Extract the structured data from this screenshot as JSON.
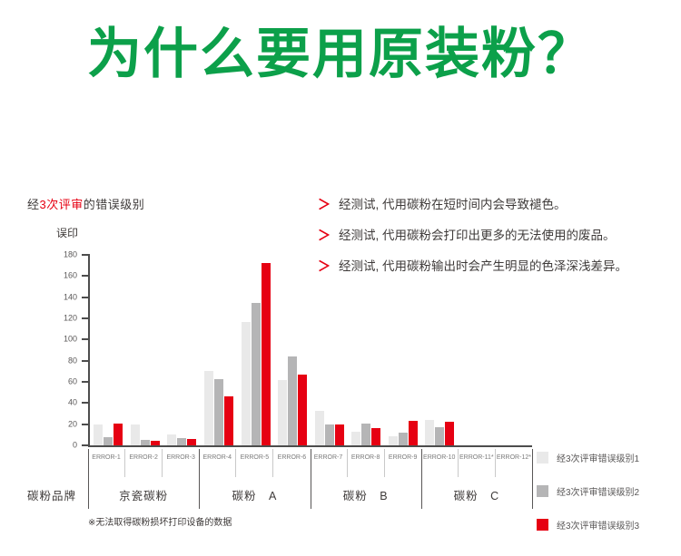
{
  "page": {
    "title": "为什么要用原装粉？",
    "title_color": "#0ca04a"
  },
  "section": {
    "heading": {
      "prefix": "经",
      "highlight": "3次评审",
      "suffix": "的错误级别",
      "highlight_color": "#e60012"
    },
    "bullet_marker": "＞",
    "bullet_marker_color": "#e60012",
    "bullets": [
      "经测试, 代用碳粉在短时间内会导致褪色。",
      "经测试, 代用碳粉会打印出更多的无法使用的废品。",
      "经测试, 代用碳粉输出时会产生明显的色泽深浅差异。"
    ]
  },
  "chart_data": {
    "type": "bar",
    "title": "经3次评审的错误级别",
    "ylabel": "误印",
    "xlabel": "碳粉品牌",
    "ylim": [
      0,
      180
    ],
    "ytick_step": 20,
    "grid": false,
    "legend_position": "bottom-right",
    "categories": [
      "ERROR-1",
      "ERROR-2",
      "ERROR-3",
      "ERROR-4",
      "ERROR-5",
      "ERROR-6",
      "ERROR-7",
      "ERROR-8",
      "ERROR-9",
      "ERROR-10",
      "ERROR-11*",
      "ERROR-12*"
    ],
    "category_groups": [
      {
        "label": "京瓷碳粉",
        "cells": 3
      },
      {
        "label": "碳粉　A",
        "cells": 3
      },
      {
        "label": "碳粉　B",
        "cells": 3
      },
      {
        "label": "碳粉　C",
        "cells": 3
      }
    ],
    "series": [
      {
        "name": "经3次评审错误级别1",
        "color": "#e9e9e9",
        "values": [
          20,
          20,
          10,
          70,
          117,
          62,
          33,
          13,
          9,
          24,
          null,
          null
        ]
      },
      {
        "name": "经3次评审错误级别2",
        "color": "#b5b5b6",
        "values": [
          8,
          5,
          7,
          63,
          135,
          84,
          20,
          21,
          12,
          17,
          null,
          null
        ]
      },
      {
        "name": "经3次评审错误级别3",
        "color": "#e60012",
        "values": [
          21,
          4,
          6,
          46,
          172,
          67,
          20,
          16,
          23,
          22,
          null,
          null
        ]
      }
    ],
    "footnote": "※无法取得碳粉损坏打印设备的数据"
  }
}
